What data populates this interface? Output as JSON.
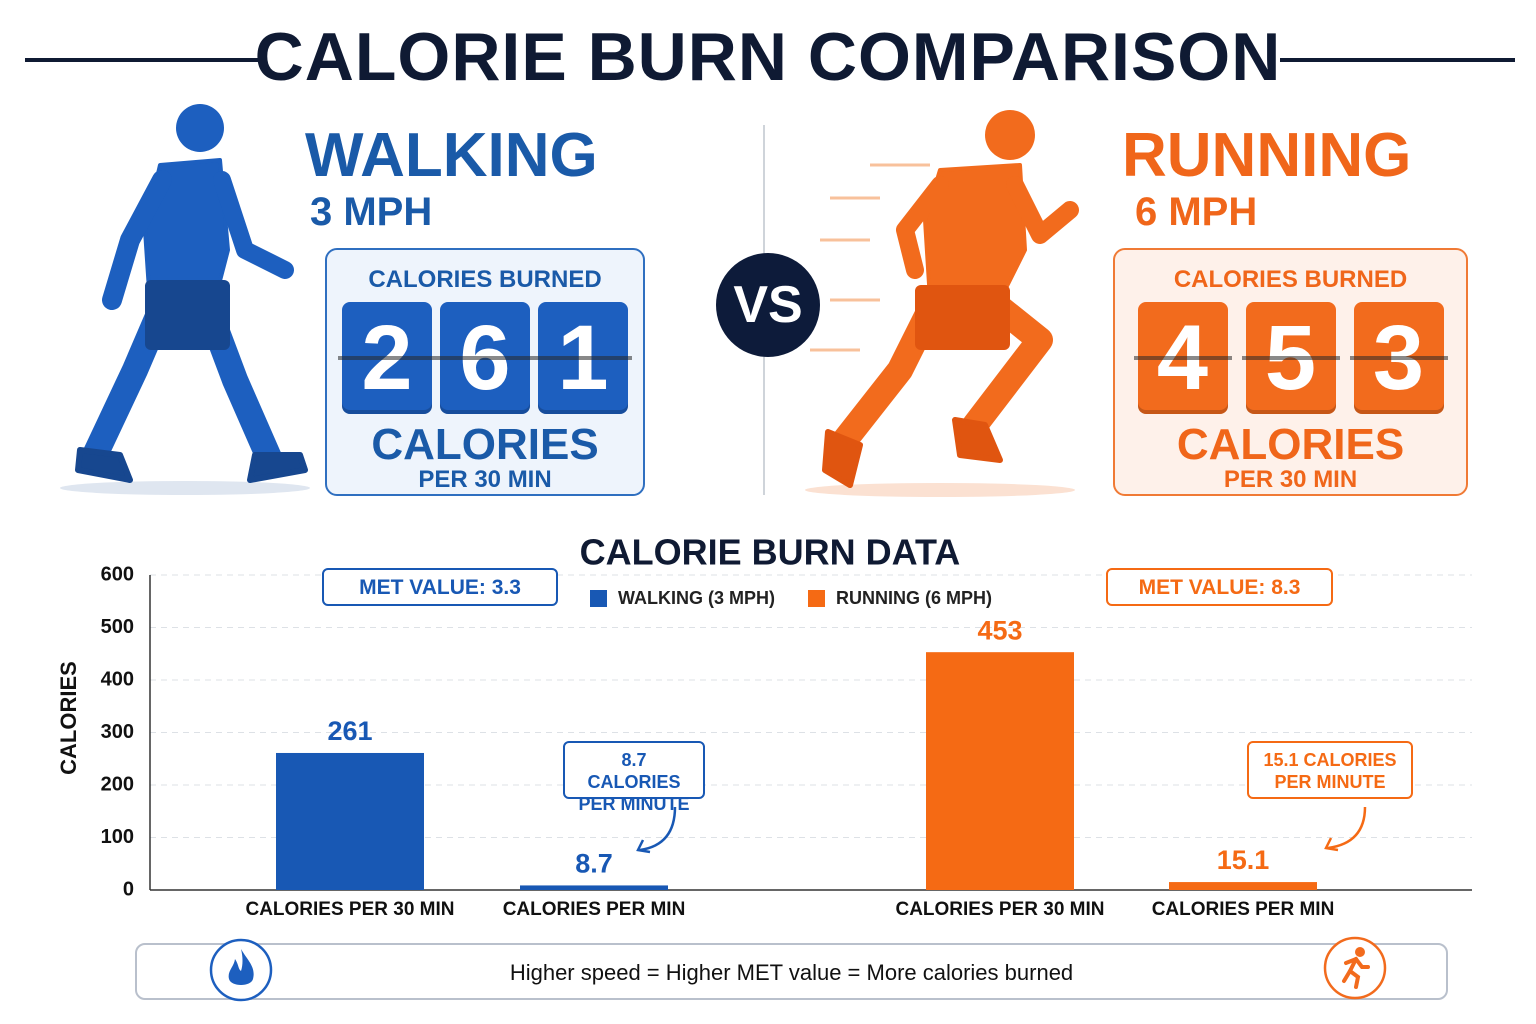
{
  "title": "CALORIE BURN COMPARISON",
  "walking": {
    "name": "WALKING",
    "speed": "3 MPH",
    "box_label": "CALORIES BURNED",
    "calories": 261,
    "unit": "CALORIES",
    "period": "PER 30 MIN"
  },
  "vs": "VS",
  "running": {
    "name": "RUNNING",
    "speed": "6 MPH",
    "box_label": "CALORIES BURNED",
    "calories": 453,
    "unit": "CALORIES",
    "period": "PER 30 MIN"
  },
  "chart_data": {
    "type": "bar",
    "title": "CALORIE BURN DATA",
    "y_label": "CALORIES",
    "categories": [
      "CALORIES PER 30 MIN",
      "CALORIES PER MIN",
      "CALORIES PER 30 MIN",
      "CALORIES PER MIN"
    ],
    "series": [
      {
        "name": "WALKING (3 MPH)",
        "color": "#1858b4",
        "values": [
          261,
          8.7,
          null,
          null
        ]
      },
      {
        "name": "RUNNING (6 MPH)",
        "color": "#f56a14",
        "values": [
          null,
          null,
          453,
          15.1
        ]
      }
    ],
    "ylim": [
      0,
      600
    ],
    "yticks": [
      0,
      100,
      200,
      300,
      400,
      500,
      600
    ],
    "grid": true,
    "annotations": [
      "MET VALUE: 3.3",
      "MET VALUE: 8.3",
      "8.7 CALORIES PER MINUTE",
      "15.1 CALORIES PER MINUTE"
    ]
  },
  "footer": "Higher speed = Higher MET value = More calories burned"
}
